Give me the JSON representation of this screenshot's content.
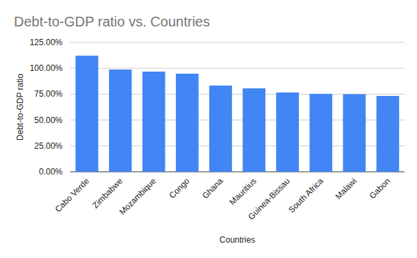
{
  "chart_data": {
    "type": "bar",
    "title": "Debt-to-GDP ratio vs. Countries",
    "x_label": "Countries",
    "y_label": "Debt-to-GDP ratio",
    "categories": [
      "Cabo Verde",
      "Zimbabwe",
      "Mozambique",
      "Congo",
      "Ghana",
      "Mauritius",
      "Guinea-Bissau",
      "South Africa",
      "Malawi",
      "Gabon"
    ],
    "values": [
      112.2,
      98.8,
      96.8,
      94.8,
      83.3,
      80.6,
      76.6,
      75.3,
      75.0,
      73.3
    ],
    "color": "#4285f4",
    "ylim": [
      0,
      125
    ],
    "yticks": [
      {
        "value": 0,
        "label": "0.00%"
      },
      {
        "value": 25,
        "label": "25.00%"
      },
      {
        "value": 50,
        "label": "50.00%"
      },
      {
        "value": 75,
        "label": "75.00%"
      },
      {
        "value": 100,
        "label": "100.00%"
      },
      {
        "value": 125,
        "label": "125.00%"
      }
    ],
    "grid": true
  }
}
